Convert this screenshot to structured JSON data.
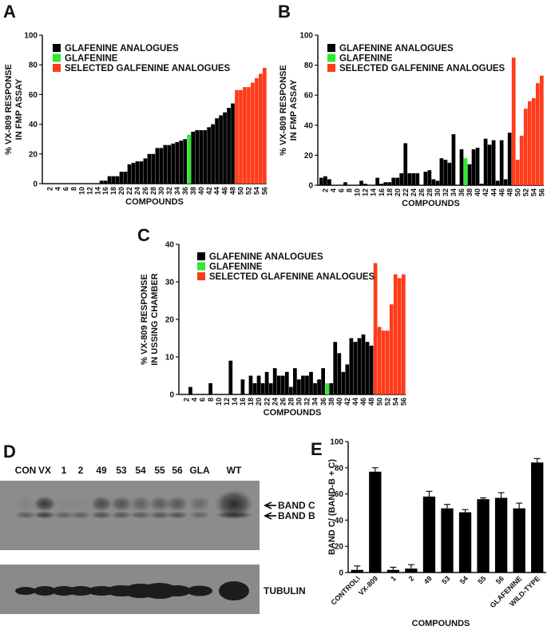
{
  "colors": {
    "analogue": "#000000",
    "glafenine": "#2ee82e",
    "selected": "#ff3b1a"
  },
  "chart_data": [
    {
      "panel": "A",
      "type": "bar",
      "xlabel": "COMPOUNDS",
      "ylabel": [
        "% VX-809 RESPONSE",
        "IN FMP ASSAY"
      ],
      "ylim": [
        0,
        100
      ],
      "yticks": [
        0,
        20,
        40,
        60,
        80,
        100
      ],
      "x": [
        1,
        2,
        3,
        4,
        5,
        6,
        7,
        8,
        9,
        10,
        11,
        12,
        13,
        14,
        15,
        16,
        17,
        18,
        19,
        20,
        21,
        22,
        23,
        24,
        25,
        26,
        27,
        28,
        29,
        30,
        31,
        32,
        33,
        34,
        35,
        36,
        37,
        38,
        39,
        40,
        41,
        42,
        43,
        44,
        45,
        46,
        47,
        48,
        49,
        50,
        51,
        52,
        53,
        54,
        55,
        56
      ],
      "values": [
        0,
        0,
        0,
        0,
        0,
        0,
        0,
        0,
        0,
        0,
        0,
        0,
        0,
        0,
        2,
        2,
        5,
        5,
        5,
        8,
        8,
        13,
        14,
        15,
        15,
        17,
        20,
        20,
        24,
        24,
        26,
        26,
        27,
        28,
        29,
        30,
        33,
        35,
        36,
        36,
        36,
        38,
        40,
        44,
        46,
        48,
        51,
        54,
        63,
        63,
        65,
        65,
        68,
        71,
        74,
        78
      ],
      "glafenine_compound": 37,
      "selected_compounds": [
        49,
        50,
        51,
        52,
        53,
        54,
        55,
        56
      ],
      "legend": [
        "GLAFENINE ANALOGUES",
        "GLAFENINE",
        "SELECTED GALFENINE ANALOGUES"
      ],
      "legend_position": "top-left"
    },
    {
      "panel": "B",
      "type": "bar",
      "xlabel": "COMPOUNDS",
      "ylabel": [
        "% VX-809 RESPONSE",
        "IN FMP ASSAY"
      ],
      "ylim": [
        0,
        100
      ],
      "yticks": [
        0,
        20,
        40,
        60,
        80,
        100
      ],
      "x": [
        1,
        2,
        3,
        4,
        5,
        6,
        7,
        8,
        9,
        10,
        11,
        12,
        13,
        14,
        15,
        16,
        17,
        18,
        19,
        20,
        21,
        22,
        23,
        24,
        25,
        26,
        27,
        28,
        29,
        30,
        31,
        32,
        33,
        34,
        35,
        36,
        37,
        38,
        39,
        40,
        41,
        42,
        43,
        44,
        45,
        46,
        47,
        48,
        49,
        50,
        51,
        52,
        53,
        54,
        55,
        56
      ],
      "values": [
        5,
        6,
        4,
        0,
        0,
        0,
        2,
        0,
        0,
        0,
        3,
        1,
        0,
        0,
        5,
        1,
        2,
        2,
        5,
        5,
        8,
        28,
        8,
        8,
        8,
        0,
        9,
        10,
        4,
        3,
        18,
        17,
        15,
        34,
        0,
        24,
        18,
        14,
        24,
        25,
        1,
        31,
        27,
        30,
        3,
        30,
        4,
        35,
        85,
        17,
        33,
        51,
        56,
        58,
        68,
        73
      ],
      "glafenine_compound": 37,
      "selected_compounds": [
        49,
        50,
        51,
        52,
        53,
        54,
        55,
        56
      ],
      "legend": [
        "GLAFENINE ANALOGUES",
        "GLAFENINE",
        "SELECTED GALFENINE ANALOGUES"
      ],
      "legend_position": "top-left"
    },
    {
      "panel": "C",
      "type": "bar",
      "xlabel": "COMPOUNDS",
      "ylabel": [
        "% VX-809 RESPONSE",
        "IN USSING CHAMBER"
      ],
      "ylim": [
        0,
        40
      ],
      "yticks": [
        0,
        10,
        20,
        30,
        40
      ],
      "x": [
        1,
        2,
        3,
        4,
        5,
        6,
        7,
        8,
        9,
        10,
        11,
        12,
        13,
        14,
        15,
        16,
        17,
        18,
        19,
        20,
        21,
        22,
        23,
        24,
        25,
        26,
        27,
        28,
        29,
        30,
        31,
        32,
        33,
        34,
        35,
        36,
        37,
        38,
        39,
        40,
        41,
        42,
        43,
        44,
        45,
        46,
        47,
        48,
        49,
        50,
        51,
        52,
        53,
        54,
        55,
        56
      ],
      "values": [
        0,
        0,
        2,
        0,
        0,
        0,
        0,
        3,
        0,
        0,
        0,
        0,
        9,
        0,
        0,
        4,
        0,
        5,
        3,
        5,
        3,
        6,
        3,
        7,
        5,
        5,
        6,
        2,
        7,
        4,
        5,
        5,
        6,
        3,
        4,
        7,
        3,
        3,
        14,
        11,
        6,
        8,
        15,
        14,
        15,
        16,
        14,
        13,
        35,
        18,
        17,
        17,
        24,
        32,
        31,
        32
      ],
      "glafenine_compound": 37,
      "selected_compounds": [
        49,
        50,
        51,
        52,
        53,
        54,
        55,
        56
      ],
      "legend": [
        "GLAFENINE ANALOGUES",
        "GLAFENINE",
        "SELECTED GLAFENINE ANALOGUES"
      ],
      "legend_position": "top-left"
    },
    {
      "panel": "E",
      "type": "bar",
      "xlabel": "COMPOUNDS",
      "ylabel": [
        "BAND C/ (BAND-B + C)"
      ],
      "ylim": [
        0,
        100
      ],
      "yticks": [
        0,
        20,
        40,
        60,
        80,
        100
      ],
      "categories": [
        "CONTROL\\",
        "VX-809",
        "1",
        "2",
        "49",
        "53",
        "54",
        "55",
        "56",
        "GLAFENINE",
        "WILD-TYPE"
      ],
      "values": [
        2,
        77,
        2,
        3,
        58,
        49,
        46,
        56,
        57,
        49,
        84
      ],
      "errors": [
        3,
        3,
        2,
        3,
        4,
        3,
        2,
        1,
        4,
        4,
        3
      ]
    }
  ],
  "blot": {
    "panel": "D",
    "lanes": [
      "CON",
      "VX",
      "1",
      "2",
      "49",
      "53",
      "54",
      "55",
      "56",
      "GLA",
      "WT"
    ],
    "band_labels": [
      "BAND C",
      "BAND B"
    ],
    "loading_label": "TUBULIN"
  }
}
